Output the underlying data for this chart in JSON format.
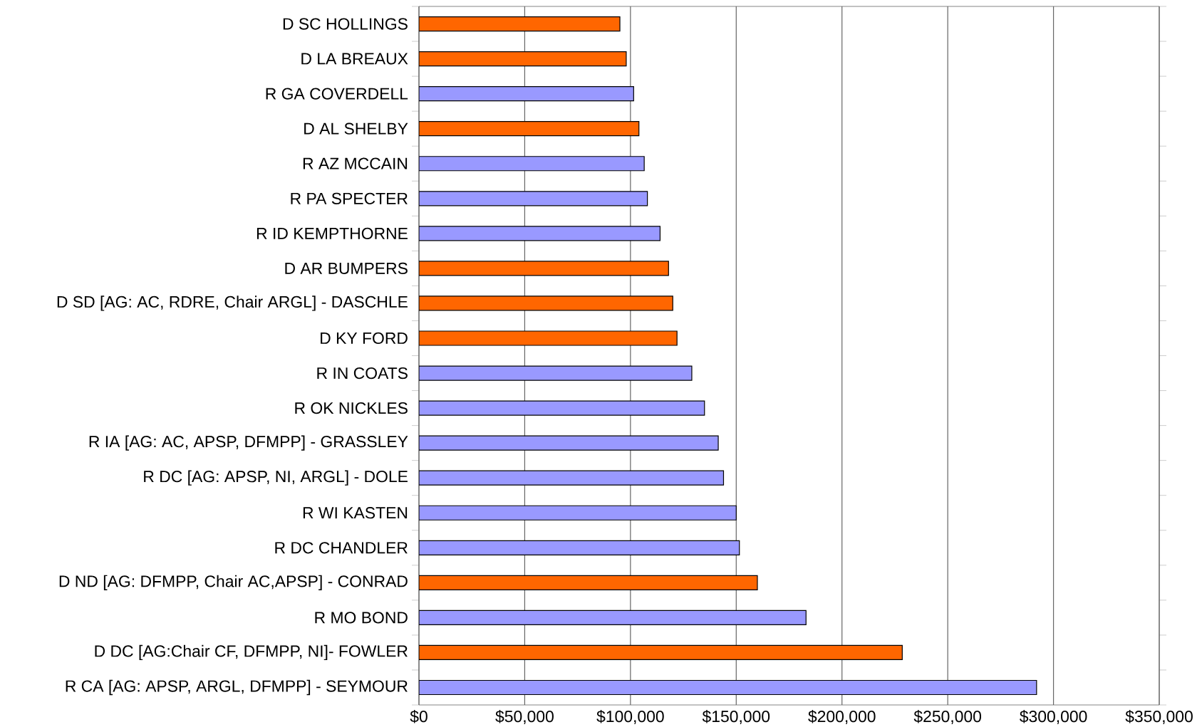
{
  "chart_data": {
    "type": "bar",
    "orientation": "horizontal",
    "categories": [
      "D SC HOLLINGS",
      "D LA BREAUX",
      "R GA COVERDELL",
      "D AL SHELBY",
      "R AZ MCCAIN",
      "R PA SPECTER",
      "R ID KEMPTHORNE",
      "D AR BUMPERS",
      "D SD [AG: AC, RDRE, Chair ARGL] - DASCHLE",
      "D KY FORD",
      "R IN COATS",
      "R OK NICKLES",
      "R IA [AG: AC, APSP, DFMPP] - GRASSLEY",
      "R DC [AG: APSP, NI, ARGL] - DOLE",
      "R WI KASTEN",
      "R DC CHANDLER",
      "D ND [AG: DFMPP, Chair AC,APSP] - CONRAD",
      "R MO BOND",
      "D DC [AG:Chair CF, DFMPP, NI]- FOWLER",
      "R CA [AG: APSP, ARGL, DFMPP] - SEYMOUR"
    ],
    "values": [
      95000,
      98000,
      101500,
      104000,
      106500,
      108000,
      114000,
      118000,
      120000,
      122000,
      129000,
      135000,
      141500,
      144000,
      150000,
      151500,
      160000,
      183000,
      228500,
      292000
    ],
    "colors": [
      "#ff6600",
      "#ff6600",
      "#9999ff",
      "#ff6600",
      "#9999ff",
      "#9999ff",
      "#9999ff",
      "#ff6600",
      "#ff6600",
      "#ff6600",
      "#9999ff",
      "#9999ff",
      "#9999ff",
      "#9999ff",
      "#9999ff",
      "#9999ff",
      "#ff6600",
      "#9999ff",
      "#ff6600",
      "#9999ff"
    ],
    "xlim": [
      0,
      350000
    ],
    "xticks": [
      {
        "value": 0,
        "label": "$0"
      },
      {
        "value": 50000,
        "label": "$50,000"
      },
      {
        "value": 100000,
        "label": "$100,000"
      },
      {
        "value": 150000,
        "label": "$150,000"
      },
      {
        "value": 200000,
        "label": "$200,000"
      },
      {
        "value": 250000,
        "label": "$250,000"
      },
      {
        "value": 300000,
        "label": "$300,000"
      },
      {
        "value": 350000,
        "label": "$350,000"
      }
    ],
    "grid": "x"
  }
}
